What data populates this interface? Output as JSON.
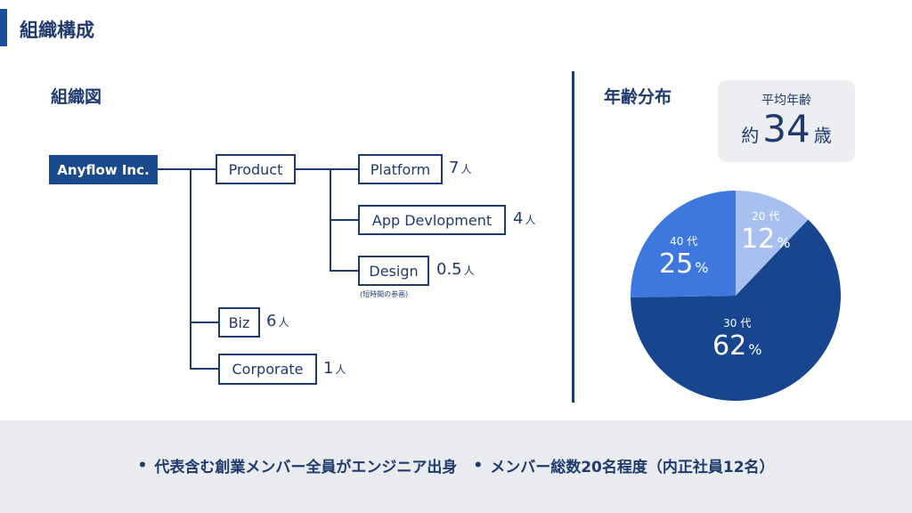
{
  "header": {
    "title": "組織構成"
  },
  "org": {
    "title": "組織図",
    "root": "Anyflow Inc.",
    "nodes": {
      "product": {
        "label": "Product"
      },
      "platform": {
        "label": "Platform",
        "count": "7",
        "unit": "人"
      },
      "app_dev": {
        "label": "App Devlopment",
        "count": "4",
        "unit": "人"
      },
      "design": {
        "label": "Design",
        "count": "0.5",
        "unit": "人",
        "note": "(短時間の参画)"
      },
      "biz": {
        "label": "Biz",
        "count": "6",
        "unit": "人"
      },
      "corporate": {
        "label": "Corporate",
        "count": "1",
        "unit": "人"
      }
    }
  },
  "age": {
    "title": "年齢分布",
    "average": {
      "label": "平均年齢",
      "prefix": "約",
      "value": "34",
      "suffix": "歳"
    },
    "slices": [
      {
        "age": "20 代",
        "pct": "12",
        "unit": "%",
        "color": "#a8c0f0"
      },
      {
        "age": "30 代",
        "pct": "62",
        "unit": "%",
        "color": "#17468f"
      },
      {
        "age": "40 代",
        "pct": "25",
        "unit": "%",
        "color": "#3e78de"
      }
    ]
  },
  "footer": {
    "bullets": [
      "代表含む創業メンバー全員がエンジニア出身",
      "メンバー総数20名程度（内正社員12名）"
    ],
    "bullet_symbol": "•"
  },
  "colors": {
    "accent": "#1a4fa0",
    "navy": "#1e3a6e",
    "footer_bg": "#e9ebef"
  }
}
